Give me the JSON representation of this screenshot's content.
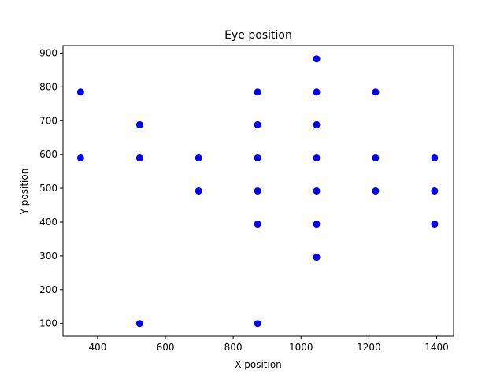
{
  "chart_data": {
    "type": "scatter",
    "title": "Eye position",
    "xlabel": "X position",
    "ylabel": "Y position",
    "xlim": [
      298,
      1450
    ],
    "ylim": [
      62,
      922
    ],
    "xticks": [
      400,
      600,
      800,
      1000,
      1200,
      1400
    ],
    "yticks": [
      100,
      200,
      300,
      400,
      500,
      600,
      700,
      800,
      900
    ],
    "grid": false,
    "marker_color": "#0000ff",
    "points": [
      {
        "x": 350,
        "y": 785
      },
      {
        "x": 350,
        "y": 590
      },
      {
        "x": 524,
        "y": 688
      },
      {
        "x": 524,
        "y": 590
      },
      {
        "x": 524,
        "y": 100
      },
      {
        "x": 698,
        "y": 590
      },
      {
        "x": 698,
        "y": 492
      },
      {
        "x": 872,
        "y": 785
      },
      {
        "x": 872,
        "y": 688
      },
      {
        "x": 872,
        "y": 590
      },
      {
        "x": 872,
        "y": 492
      },
      {
        "x": 872,
        "y": 394
      },
      {
        "x": 872,
        "y": 100
      },
      {
        "x": 1046,
        "y": 883
      },
      {
        "x": 1046,
        "y": 785
      },
      {
        "x": 1046,
        "y": 688
      },
      {
        "x": 1046,
        "y": 590
      },
      {
        "x": 1046,
        "y": 492
      },
      {
        "x": 1046,
        "y": 394
      },
      {
        "x": 1046,
        "y": 296
      },
      {
        "x": 1220,
        "y": 785
      },
      {
        "x": 1220,
        "y": 590
      },
      {
        "x": 1220,
        "y": 492
      },
      {
        "x": 1394,
        "y": 590
      },
      {
        "x": 1394,
        "y": 492
      },
      {
        "x": 1394,
        "y": 394
      }
    ]
  }
}
